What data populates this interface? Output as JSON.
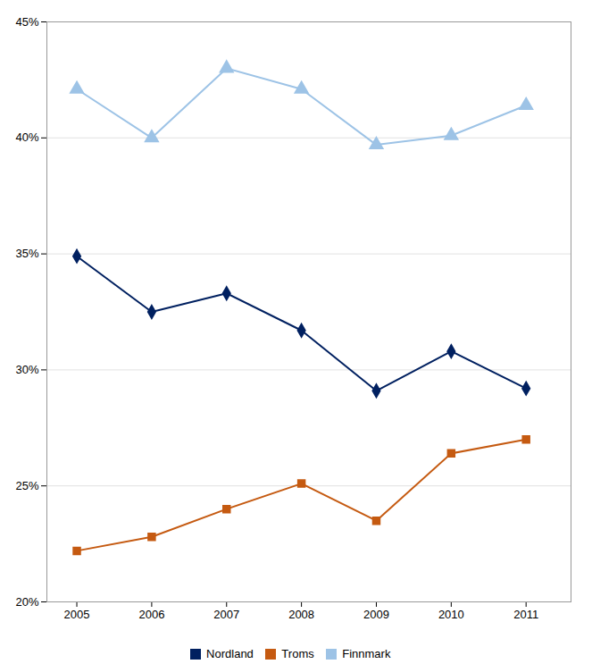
{
  "chart_data": {
    "type": "line",
    "x": [
      2005,
      2006,
      2007,
      2008,
      2009,
      2010,
      2011
    ],
    "series": [
      {
        "name": "Nordland",
        "color": "#002060",
        "marker": "diamond",
        "values": [
          0.349,
          0.325,
          0.333,
          0.317,
          0.291,
          0.308,
          0.292
        ]
      },
      {
        "name": "Troms",
        "color": "#c55a11",
        "marker": "square",
        "values": [
          0.222,
          0.228,
          0.24,
          0.251,
          0.235,
          0.264,
          0.27
        ]
      },
      {
        "name": "Finnmark",
        "color": "#9dc3e6",
        "marker": "triangle",
        "values": [
          0.421,
          0.4,
          0.43,
          0.421,
          0.397,
          0.401,
          0.414
        ]
      }
    ],
    "xlim": [
      2004.6,
      2011.6
    ],
    "xticks": [
      2005,
      2006,
      2007,
      2008,
      2009,
      2010,
      2011
    ],
    "ylim": [
      0.2,
      0.45
    ],
    "yticks": [
      {
        "value": 0.2,
        "label": "20%"
      },
      {
        "value": 0.25,
        "label": "25%"
      },
      {
        "value": 0.3,
        "label": "30%"
      },
      {
        "value": 0.35,
        "label": "35%"
      },
      {
        "value": 0.4,
        "label": "40%"
      },
      {
        "value": 0.45,
        "label": "45%"
      }
    ],
    "grid": true,
    "legend": "bottom"
  }
}
